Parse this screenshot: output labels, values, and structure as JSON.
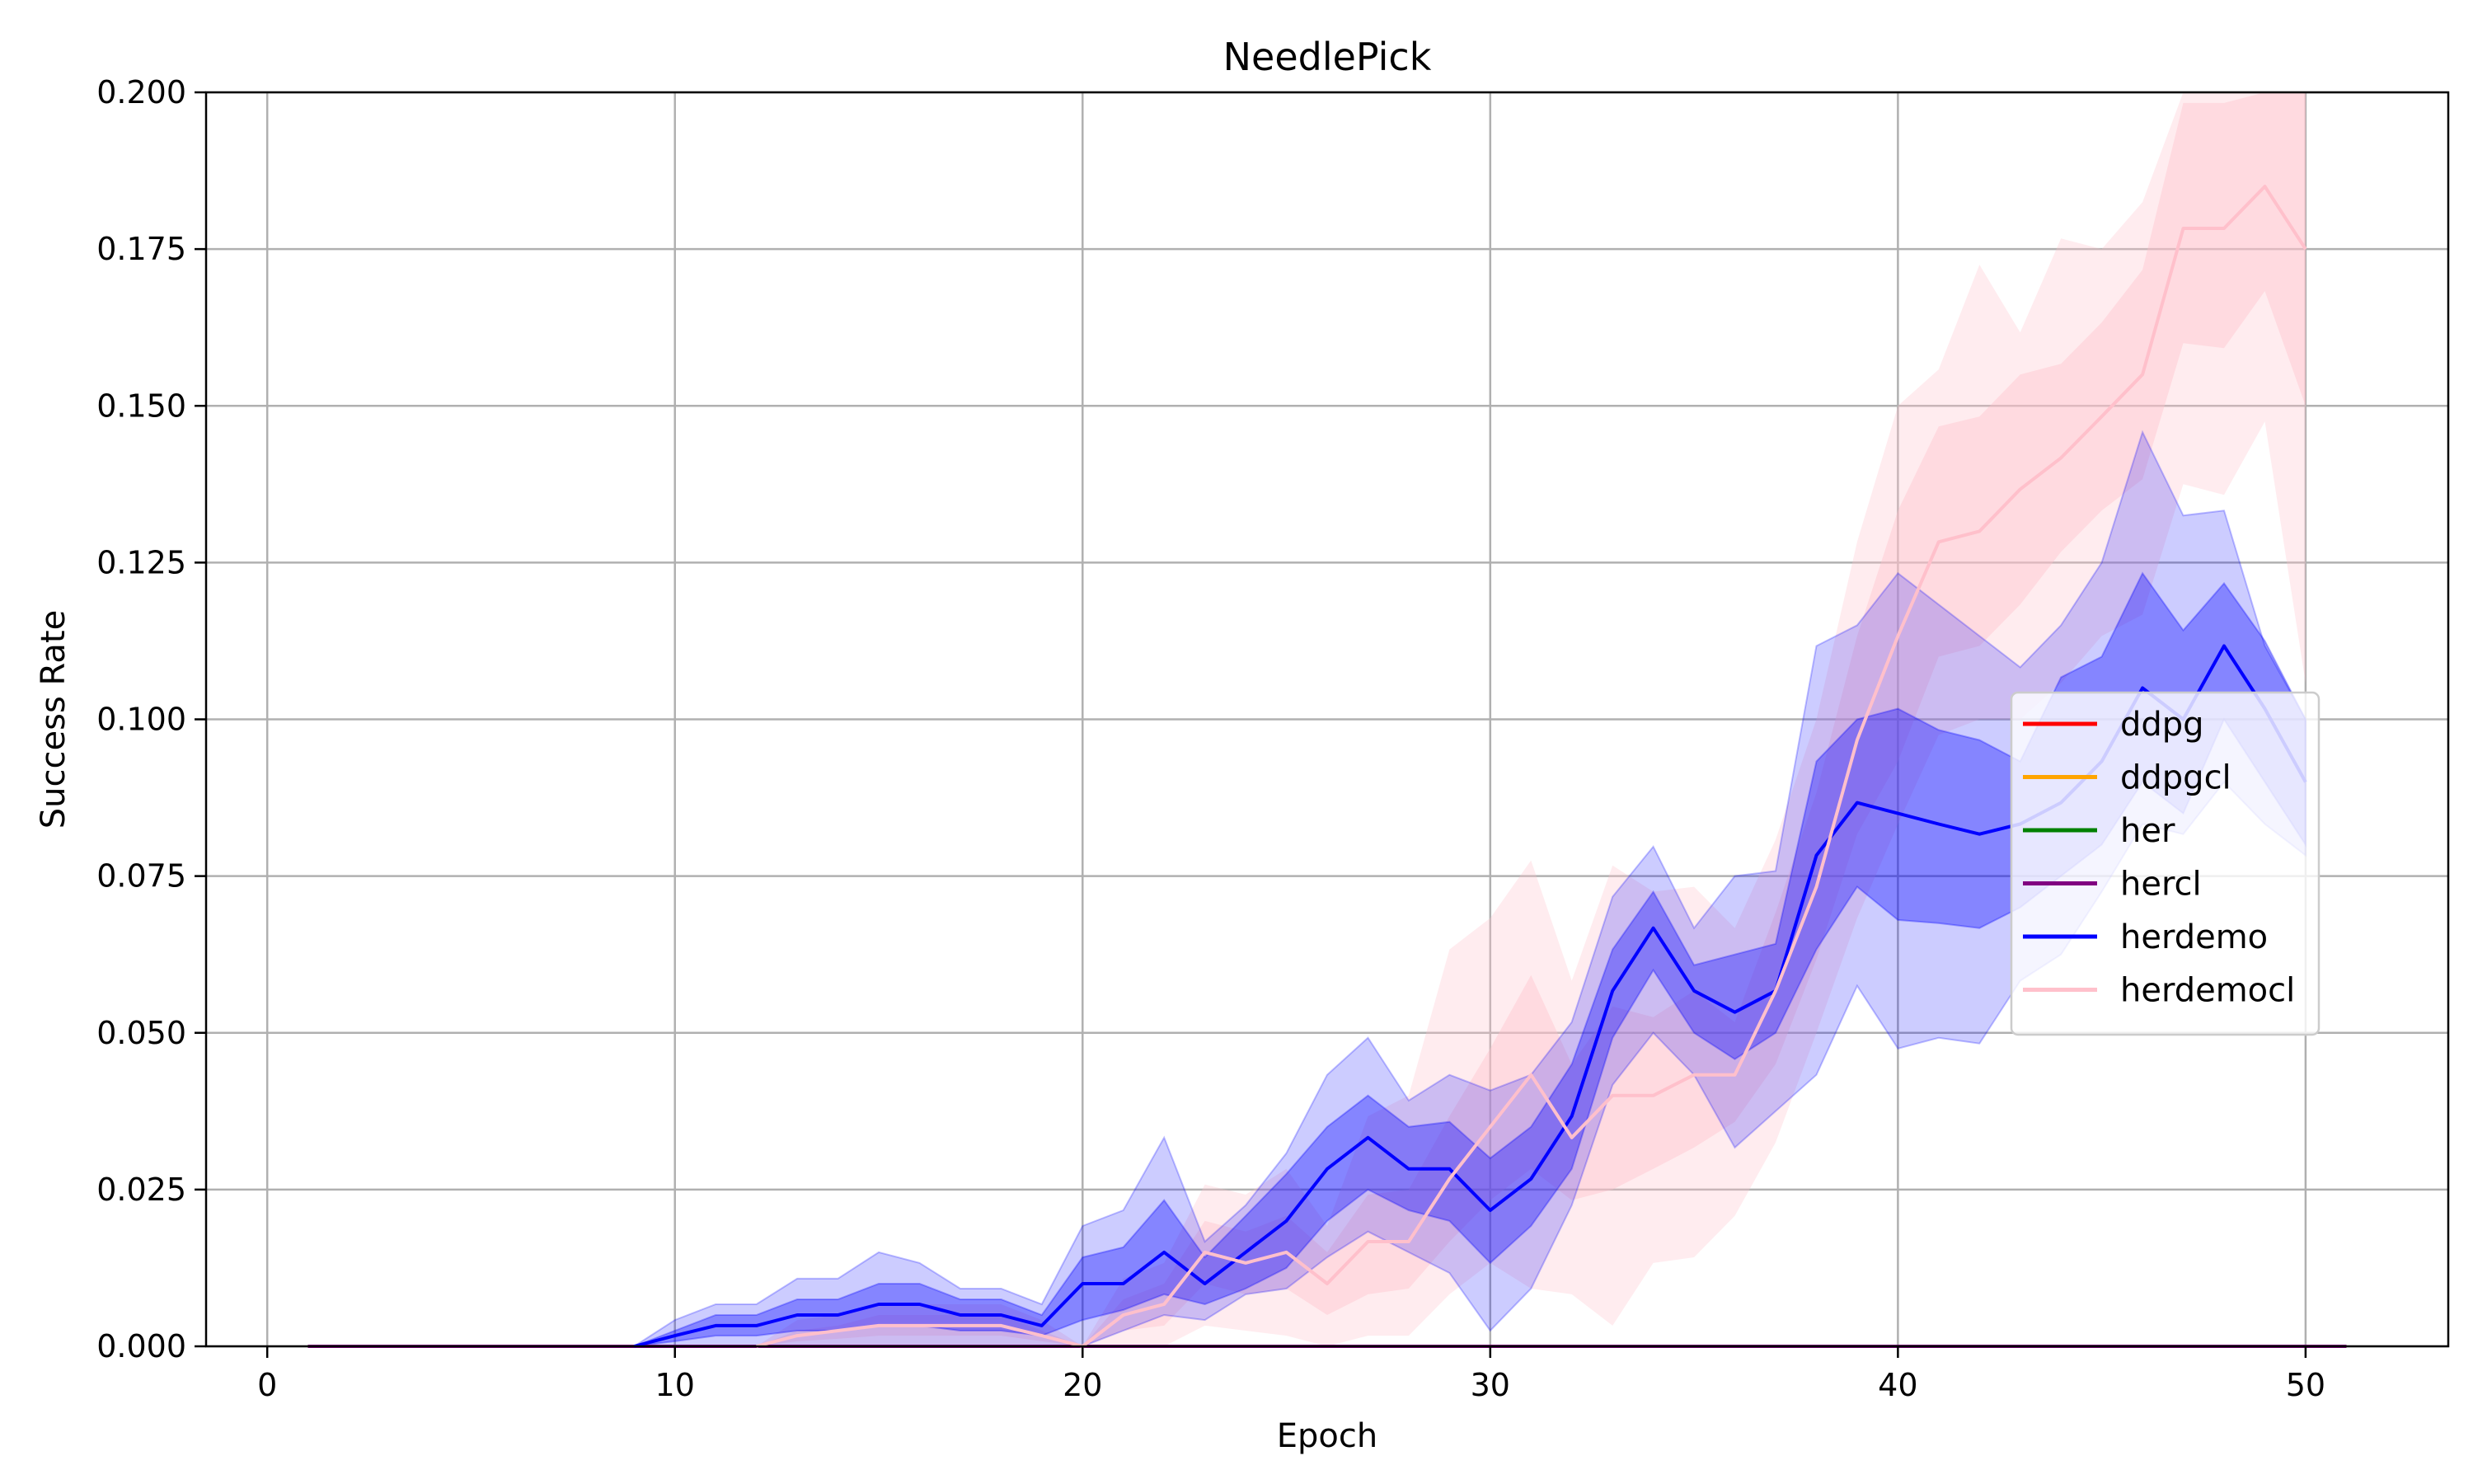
{
  "chart_data": {
    "type": "line",
    "title": "NeedlePick",
    "xlabel": "Epoch",
    "ylabel": "Success Rate",
    "xlim": [
      -1.5,
      53.5
    ],
    "ylim": [
      0,
      0.2
    ],
    "xticks": [
      0,
      10,
      20,
      30,
      40,
      50
    ],
    "xtick_labels": [
      "0",
      "10",
      "20",
      "30",
      "40",
      "50"
    ],
    "yticks": [
      0,
      0.025,
      0.05,
      0.075,
      0.1,
      0.125,
      0.15,
      0.175,
      0.2
    ],
    "ytick_labels": [
      "0.000",
      "0.025",
      "0.050",
      "0.075",
      "0.100",
      "0.125",
      "0.150",
      "0.175",
      "0.200"
    ],
    "grid": true,
    "legend_position": "center-right",
    "series": [
      {
        "name": "ddpg",
        "color": "#ff0000",
        "x": [
          1,
          51
        ],
        "mean": [
          0,
          0
        ]
      },
      {
        "name": "ddpgcl",
        "color": "#ffa500",
        "x": [
          1,
          51
        ],
        "mean": [
          0,
          0
        ]
      },
      {
        "name": "her",
        "color": "#008000",
        "x": [
          1,
          51
        ],
        "mean": [
          0,
          0
        ]
      },
      {
        "name": "hercl",
        "color": "#800080",
        "x": [
          1,
          51
        ],
        "mean": [
          0,
          0
        ]
      },
      {
        "name": "herdemo",
        "color": "#0000ff",
        "x": [
          9,
          10,
          11,
          12,
          13,
          14,
          15,
          16,
          17,
          18,
          19,
          20,
          21,
          22,
          23,
          24,
          25,
          26,
          27,
          28,
          29,
          30,
          31,
          32,
          33,
          34,
          35,
          36,
          37,
          38,
          39,
          40,
          41,
          42,
          43,
          44,
          45,
          46,
          47,
          48,
          49,
          50
        ],
        "mean": [
          0,
          0.0017,
          0.0033,
          0.0033,
          0.005,
          0.005,
          0.0067,
          0.0067,
          0.005,
          0.005,
          0.0033,
          0.01,
          0.01,
          0.015,
          0.01,
          0.015,
          0.02,
          0.0283,
          0.0333,
          0.0283,
          0.0283,
          0.0217,
          0.0267,
          0.0367,
          0.0567,
          0.0667,
          0.0567,
          0.0533,
          0.0567,
          0.0783,
          0.0867,
          0.085,
          0.0833,
          0.0817,
          0.0833,
          0.0867,
          0.0933,
          0.105,
          0.1,
          0.1117,
          0.1017,
          0.09
        ],
        "band_inner_low": [
          0,
          0.0008,
          0.0017,
          0.0017,
          0.0025,
          0.0025,
          0.0033,
          0.0033,
          0.0025,
          0.0025,
          0.0017,
          0.0042,
          0.0058,
          0.0083,
          0.0067,
          0.0092,
          0.0125,
          0.02,
          0.025,
          0.0217,
          0.02,
          0.0133,
          0.0192,
          0.0283,
          0.0492,
          0.06,
          0.05,
          0.0458,
          0.05,
          0.0633,
          0.0733,
          0.068,
          0.0675,
          0.0667,
          0.07,
          0.075,
          0.08,
          0.09,
          0.085,
          0.1,
          0.09,
          0.08
        ],
        "band_inner_high": [
          0,
          0.0025,
          0.005,
          0.005,
          0.0075,
          0.0075,
          0.01,
          0.01,
          0.0075,
          0.0075,
          0.005,
          0.0142,
          0.0158,
          0.0233,
          0.0142,
          0.0208,
          0.0275,
          0.035,
          0.04,
          0.035,
          0.0358,
          0.03,
          0.035,
          0.045,
          0.0633,
          0.0725,
          0.0608,
          0.0625,
          0.0642,
          0.0933,
          0.1,
          0.1017,
          0.0983,
          0.0967,
          0.0933,
          0.1067,
          0.11,
          0.1233,
          0.1142,
          0.1217,
          0.1125,
          0.1
        ]
      },
      {
        "name": "herdemocl",
        "color": "#ffc0cb",
        "x": [
          12,
          13,
          14,
          15,
          16,
          17,
          18,
          19,
          20,
          21,
          22,
          23,
          24,
          25,
          26,
          27,
          28,
          29,
          30,
          31,
          32,
          33,
          34,
          35,
          36,
          37,
          38,
          39,
          40,
          41,
          42,
          43,
          44,
          45,
          46,
          47,
          48,
          49,
          50
        ],
        "mean": [
          0,
          0.0017,
          0.0025,
          0.0033,
          0.0033,
          0.0033,
          0.0033,
          0.0017,
          0,
          0.005,
          0.0067,
          0.015,
          0.0133,
          0.015,
          0.01,
          0.0167,
          0.0167,
          0.0267,
          0.035,
          0.0433,
          0.0333,
          0.04,
          0.04,
          0.0433,
          0.0433,
          0.0567,
          0.0733,
          0.0967,
          0.1133,
          0.1283,
          0.13,
          0.1367,
          0.1417,
          0.1483,
          0.155,
          0.1783,
          0.1783,
          0.185,
          0.175
        ],
        "band_inner_low": [
          0,
          0.0008,
          0.0012,
          0.0017,
          0.0017,
          0.0017,
          0.0017,
          0.0008,
          0,
          0.0025,
          0.0033,
          0.01,
          0.0083,
          0.0092,
          0.005,
          0.0083,
          0.0092,
          0.0167,
          0.0233,
          0.0283,
          0.0233,
          0.025,
          0.0283,
          0.0317,
          0.0358,
          0.045,
          0.0617,
          0.0817,
          0.0933,
          0.11,
          0.1117,
          0.1183,
          0.1267,
          0.1333,
          0.1383,
          0.16,
          0.1592,
          0.1683,
          0.15
        ],
        "band_inner_high": [
          0,
          0.0025,
          0.0033,
          0.005,
          0.005,
          0.005,
          0.005,
          0.0025,
          0,
          0.0075,
          0.01,
          0.02,
          0.0183,
          0.0208,
          0.015,
          0.0242,
          0.025,
          0.0367,
          0.0475,
          0.0592,
          0.045,
          0.0542,
          0.0525,
          0.0567,
          0.0517,
          0.0692,
          0.0883,
          0.1133,
          0.1333,
          0.1467,
          0.1483,
          0.155,
          0.1567,
          0.1633,
          0.1717,
          0.1983,
          0.1983,
          0.2,
          0.2
        ],
        "band_outer_low": [
          0,
          0,
          0,
          0,
          0,
          0,
          0,
          0,
          0,
          0,
          0,
          0.0033,
          0.0025,
          0.0017,
          0,
          0.0017,
          0.0017,
          0.0083,
          0.0133,
          0.0092,
          0.0083,
          0.0033,
          0.0133,
          0.0142,
          0.0208,
          0.0325,
          0.05,
          0.0683,
          0.0833,
          0.0975,
          0.1,
          0.1,
          0.1058,
          0.1133,
          0.1167,
          0.1375,
          0.1358,
          0.1475,
          0.1058
        ],
        "band_outer_high": [
          0,
          0.0042,
          0.005,
          0.0067,
          0.0067,
          0.0067,
          0.0067,
          0.0042,
          0,
          0.0108,
          0.0133,
          0.0258,
          0.0242,
          0.0283,
          0.0192,
          0.0367,
          0.04,
          0.0633,
          0.0683,
          0.0775,
          0.0583,
          0.0767,
          0.0725,
          0.0733,
          0.0667,
          0.0808,
          0.1,
          0.1283,
          0.15,
          0.1558,
          0.1725,
          0.1617,
          0.1767,
          0.175,
          0.1825,
          0.2,
          0.2,
          0.2,
          0.2
        ]
      }
    ],
    "herdemo_outer": {
      "x": [
        9,
        10,
        11,
        12,
        13,
        14,
        15,
        16,
        17,
        18,
        19,
        20,
        21,
        22,
        23,
        24,
        25,
        26,
        27,
        28,
        29,
        30,
        31,
        32,
        33,
        34,
        35,
        36,
        37,
        38,
        39,
        40,
        41,
        42,
        43,
        44,
        45,
        46,
        47,
        48,
        49,
        50
      ],
      "low": [
        0,
        0,
        0,
        0,
        0,
        0,
        0,
        0,
        0,
        0,
        0,
        0,
        0.0025,
        0.005,
        0.0042,
        0.0083,
        0.0092,
        0.0142,
        0.0183,
        0.015,
        0.0117,
        0.0025,
        0.0092,
        0.0225,
        0.0417,
        0.05,
        0.0433,
        0.0317,
        0.0375,
        0.0433,
        0.0575,
        0.0475,
        0.0492,
        0.0483,
        0.0583,
        0.0625,
        0.0725,
        0.0833,
        0.0817,
        0.09,
        0.0833,
        0.0783
      ],
      "high": [
        0,
        0.0042,
        0.0067,
        0.0067,
        0.0108,
        0.0108,
        0.015,
        0.0133,
        0.0092,
        0.0092,
        0.0067,
        0.0192,
        0.0217,
        0.0333,
        0.0167,
        0.0225,
        0.0308,
        0.0433,
        0.0492,
        0.0392,
        0.0433,
        0.0408,
        0.0433,
        0.0517,
        0.0717,
        0.0797,
        0.0667,
        0.075,
        0.0758,
        0.1117,
        0.115,
        0.1233,
        0.1183,
        0.1133,
        0.1083,
        0.115,
        0.125,
        0.1458,
        0.1325,
        0.1333,
        0.1117,
        0.1
      ]
    }
  }
}
